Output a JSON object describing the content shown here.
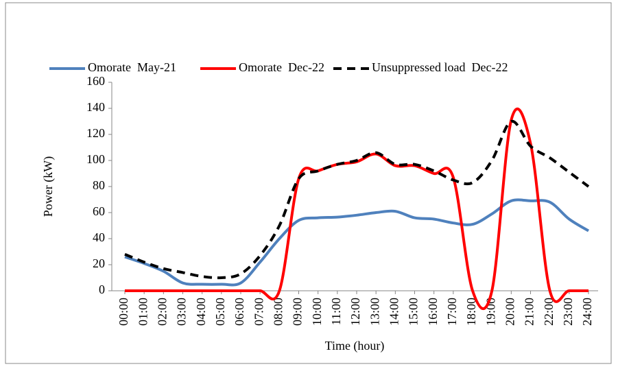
{
  "chart_data": {
    "type": "line",
    "x_label": "Time (hour)",
    "y_label": "Power (kW)",
    "categories": [
      "00:00",
      "01:00",
      "02:00",
      "03:00",
      "04:00",
      "05:00",
      "06:00",
      "07:00",
      "08:00",
      "09:00",
      "10:00",
      "11:00",
      "12:00",
      "13:00",
      "14:00",
      "15:00",
      "16:00",
      "17:00",
      "18:00",
      "19:00",
      "20:00",
      "21:00",
      "22:00",
      "23:00",
      "24:00"
    ],
    "series": [
      {
        "name": "Omorate  May-21",
        "color": "#4f81bd",
        "dash": "solid",
        "values": [
          26,
          21,
          15,
          6,
          5,
          5,
          6,
          22,
          40,
          54,
          56,
          56.5,
          58,
          60,
          61,
          56,
          55,
          52,
          51,
          59,
          69,
          69,
          68,
          55,
          46
        ]
      },
      {
        "name": "Omorate  Dec-22",
        "color": "#ff0000",
        "dash": "solid",
        "values": [
          0,
          0,
          0,
          0,
          0,
          0,
          0,
          0,
          0,
          86,
          92,
          97,
          99,
          105,
          96,
          96,
          90,
          87,
          0,
          0,
          131,
          113,
          0,
          0,
          0
        ]
      },
      {
        "name": "Unsuppressed load  Dec-22",
        "color": "#000000",
        "dash": "dashed",
        "values": [
          28,
          22,
          17,
          14,
          11,
          10,
          13,
          27,
          50,
          86,
          92,
          97,
          100,
          106,
          97,
          97,
          92,
          85,
          83,
          100,
          130,
          111,
          102,
          91,
          80
        ]
      }
    ],
    "ylim": [
      0,
      160
    ],
    "yticks": [
      0,
      20,
      40,
      60,
      80,
      100,
      120,
      140,
      160
    ],
    "grid": false,
    "legend": "top"
  }
}
